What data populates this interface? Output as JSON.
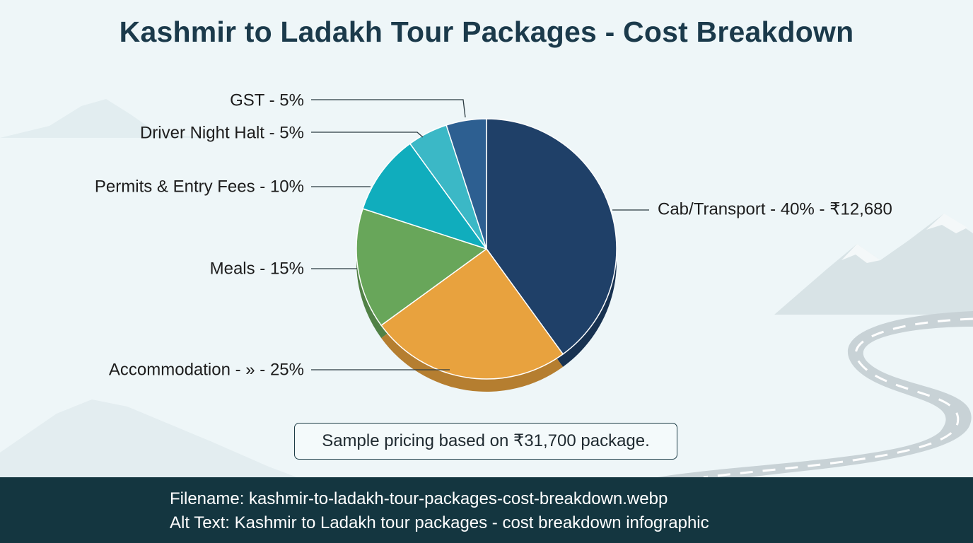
{
  "title": "Kashmir to Ladakh Tour Packages - Cost Breakdown",
  "note": "Sample pricing based on ₹31,700 package.",
  "footer": {
    "filename": "Filename: kashmir-to-ladakh-tour-packages-cost-breakdown.webp",
    "alt_text": "Alt Text: Kashmir to Ladakh tour packages - cost breakdown infographic"
  },
  "chart_data": {
    "type": "pie",
    "title": "Kashmir to Ladakh Tour Packages - Cost Breakdown",
    "slices": [
      {
        "label": "Cab/Transport - 40% - ₹12,680",
        "value": 40,
        "color": "#1f4068"
      },
      {
        "label": "Accommodation - » - 25%",
        "value": 25,
        "color": "#e8a23e"
      },
      {
        "label": "Meals - 15%",
        "value": 15,
        "color": "#68a65a"
      },
      {
        "label": "Permits & Entry Fees - 10%",
        "value": 10,
        "color": "#10adbd"
      },
      {
        "label": "Driver Night Halt - 5%",
        "value": 5,
        "color": "#3bb8c6"
      },
      {
        "label": "GST - 5%",
        "value": 5,
        "color": "#2d5f91"
      }
    ],
    "legend": "none (labels with leader lines)"
  }
}
